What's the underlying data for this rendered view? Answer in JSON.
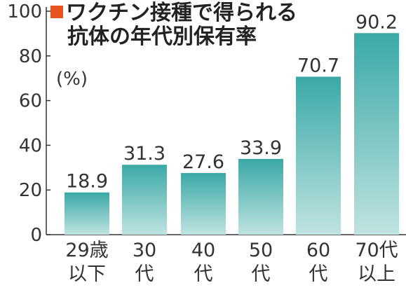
{
  "title": {
    "line1": "ワクチン接種で得られる",
    "line2": "抗体の年代別保有率"
  },
  "unit_label": "(%)",
  "colors": {
    "accent_marker": "#e8541e",
    "bar_top": "#3aa9a6",
    "bar_bottom": "#bfe3e0",
    "axis": "#333333"
  },
  "chart_data": {
    "type": "bar",
    "title": "ワクチン接種で得られる抗体の年代別保有率",
    "ylabel": "(%)",
    "xlabel": "",
    "ylim": [
      0,
      100
    ],
    "yticks": [
      "0",
      "20",
      "40",
      "60",
      "80",
      "100"
    ],
    "grid": false,
    "categories": [
      [
        "29歳",
        "以下"
      ],
      [
        "30",
        "代"
      ],
      [
        "40",
        "代"
      ],
      [
        "50",
        "代"
      ],
      [
        "60",
        "代"
      ],
      [
        "70代",
        "以上"
      ]
    ],
    "values": [
      18.9,
      31.3,
      27.6,
      33.9,
      70.7,
      90.2
    ],
    "value_labels": [
      "18.9",
      "31.3",
      "27.6",
      "33.9",
      "70.7",
      "90.2"
    ]
  }
}
